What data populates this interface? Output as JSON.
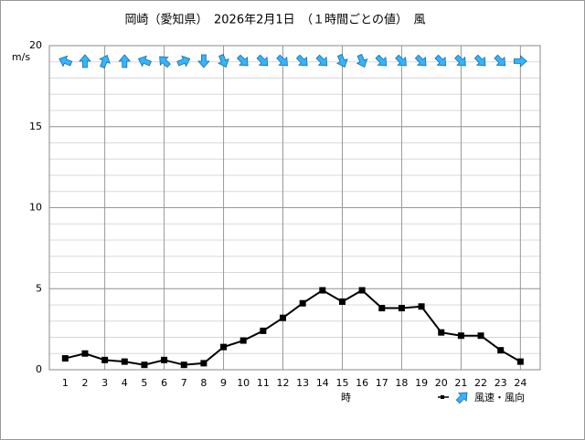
{
  "chart_data": {
    "type": "line",
    "title": "岡崎（愛知県）　2026年2月1日　（１時間ごとの値）　風",
    "x_label": "時",
    "y_label": "m/s",
    "x": [
      1,
      2,
      3,
      4,
      5,
      6,
      7,
      8,
      9,
      10,
      11,
      12,
      13,
      14,
      15,
      16,
      17,
      18,
      19,
      20,
      21,
      22,
      23,
      24
    ],
    "xlim": [
      0.2,
      25
    ],
    "xticks": [
      1,
      2,
      3,
      4,
      5,
      6,
      7,
      8,
      9,
      10,
      11,
      12,
      13,
      14,
      15,
      16,
      17,
      18,
      19,
      20,
      21,
      22,
      23,
      24
    ],
    "ylim": [
      0,
      20
    ],
    "yticks": [
      0,
      5,
      10,
      15,
      20
    ],
    "grid": true,
    "series": [
      {
        "name": "風速・風向",
        "color": "#000000",
        "values": [
          0.7,
          1.0,
          0.6,
          0.5,
          0.3,
          0.6,
          0.3,
          0.4,
          1.4,
          1.8,
          2.4,
          3.2,
          4.1,
          4.9,
          4.2,
          4.9,
          3.8,
          3.8,
          3.9,
          2.3,
          2.1,
          2.1,
          1.2,
          0.5
        ],
        "direction": [
          292.5,
          0,
          22.5,
          0,
          292.5,
          315,
          67.5,
          180,
          157.5,
          135,
          135,
          135,
          135,
          135,
          157.5,
          157.5,
          135,
          135,
          135,
          135,
          135,
          135,
          135,
          90
        ],
        "direction_color": "#33b5ff"
      }
    ]
  }
}
